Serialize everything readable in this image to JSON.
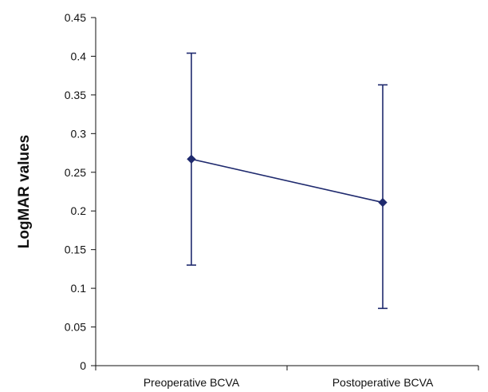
{
  "chart_data": {
    "type": "line",
    "title": "",
    "xlabel": "",
    "ylabel": "LogMAR values",
    "categories": [
      "Preoperative BCVA",
      "Postoperative BCVA"
    ],
    "series": [
      {
        "values": [
          0.267,
          0.211
        ],
        "error_low": [
          0.13,
          0.074
        ],
        "error_high": [
          0.404,
          0.363
        ]
      }
    ],
    "ylim": [
      0,
      0.45
    ],
    "yticks": [
      0,
      0.05,
      0.1,
      0.15,
      0.2,
      0.25,
      0.3,
      0.35,
      0.4,
      0.45
    ],
    "ytick_labels": [
      "0",
      "0.05",
      "0.1",
      "0.15",
      "0.2",
      "0.25",
      "0.3",
      "0.35",
      "0.4",
      "0.45"
    ],
    "grid": false,
    "legend": "none",
    "colors": {
      "series": "#1f2a6e",
      "axis": "#111111"
    }
  }
}
